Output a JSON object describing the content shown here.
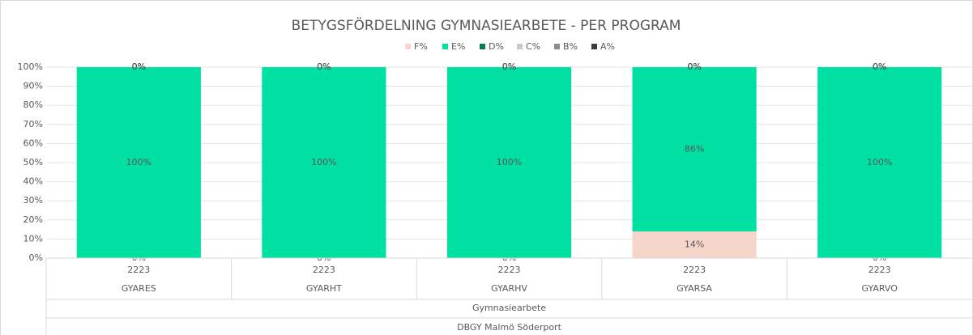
{
  "chart_data": {
    "type": "stacked_bar",
    "title": "BETYGSFÖRDELNING GYMNASIEARBETE - PER PROGRAM",
    "categories": [
      "GYARES",
      "GYARHT",
      "GYARHV",
      "GYARSA",
      "GYARVO"
    ],
    "periods": [
      "2223",
      "2223",
      "2223",
      "2223",
      "2223"
    ],
    "group_label": "Gymnasiearbete",
    "school_label": "DBGY Malmö Söderport",
    "ylim": [
      0,
      100
    ],
    "yticks": [
      {
        "value": 0,
        "label": "0%"
      },
      {
        "value": 10,
        "label": "10%"
      },
      {
        "value": 20,
        "label": "20%"
      },
      {
        "value": 30,
        "label": "30%"
      },
      {
        "value": 40,
        "label": "40%"
      },
      {
        "value": 50,
        "label": "50%"
      },
      {
        "value": 60,
        "label": "60%"
      },
      {
        "value": 70,
        "label": "70%"
      },
      {
        "value": 80,
        "label": "80%"
      },
      {
        "value": 90,
        "label": "90%"
      },
      {
        "value": 100,
        "label": "100%"
      }
    ],
    "grid": true,
    "legend": "top",
    "series": [
      {
        "name": "F%",
        "color": "#f6d5ca",
        "values": [
          0,
          0,
          0,
          14,
          0
        ],
        "value_labels": [
          "0%",
          "0%",
          "0%",
          "14%",
          "0%"
        ]
      },
      {
        "name": "E%",
        "color": "#00e0a2",
        "values": [
          100,
          100,
          100,
          86,
          100
        ],
        "value_labels": [
          "100%",
          "100%",
          "100%",
          "86%",
          "100%"
        ]
      },
      {
        "name": "D%",
        "color": "#0b7a4e",
        "values": [
          0,
          0,
          0,
          0,
          0
        ],
        "value_labels": [
          "0%",
          "0%",
          "0%",
          "0%",
          "0%"
        ]
      },
      {
        "name": "C%",
        "color": "#c9c9c9",
        "values": [
          0,
          0,
          0,
          0,
          0
        ],
        "value_labels": [
          "0%",
          "0%",
          "0%",
          "0%",
          "0%"
        ]
      },
      {
        "name": "B%",
        "color": "#8c8c8c",
        "values": [
          0,
          0,
          0,
          0,
          0
        ],
        "value_labels": [
          "0%",
          "0%",
          "0%",
          "0%",
          "0%"
        ]
      },
      {
        "name": "A%",
        "color": "#3d3d3d",
        "values": [
          0,
          0,
          0,
          0,
          0
        ],
        "value_labels": [
          "0%",
          "0%",
          "0%",
          "0%",
          "0%"
        ]
      }
    ]
  }
}
